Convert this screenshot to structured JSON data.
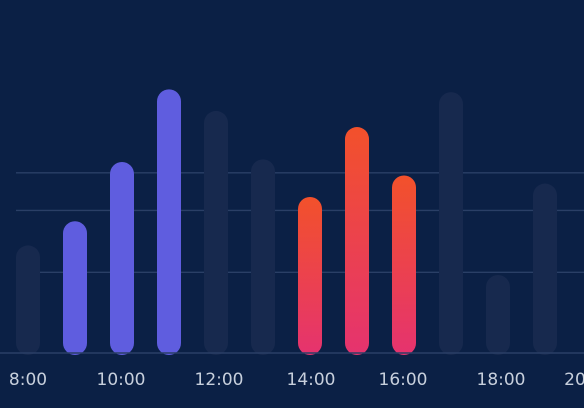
{
  "colors": {
    "background": "#0b2045",
    "inactive_bar": "#17294e",
    "grid": "#2a3f66",
    "axis_text": "#c7cfdc",
    "blue_bar": "#5f5ddf",
    "warm_top": "#f2512b",
    "warm_bottom": "#e5336f"
  },
  "chart_data": {
    "type": "bar",
    "title": "",
    "xlabel": "",
    "ylabel": "",
    "ylim": [
      0,
      100
    ],
    "grid": true,
    "x_tick_labels": [
      "8:00",
      "10:00",
      "12:00",
      "14:00",
      "16:00",
      "18:00",
      "20"
    ],
    "categories": [
      "8:00",
      "9:00",
      "10:00",
      "11:00",
      "12:00",
      "13:00",
      "14:00",
      "15:00",
      "16:00",
      "17:00",
      "18:00",
      "19:00"
    ],
    "series": [
      {
        "style": "inactive",
        "values": [
          40,
          null,
          null,
          null,
          90,
          72,
          null,
          null,
          null,
          97,
          29,
          63
        ]
      },
      {
        "style": "blue",
        "values": [
          null,
          49,
          71,
          98,
          null,
          null,
          null,
          null,
          null,
          null,
          null,
          null
        ]
      },
      {
        "style": "warm-gradient",
        "values": [
          null,
          null,
          null,
          null,
          null,
          null,
          58,
          84,
          66,
          null,
          null,
          null
        ]
      }
    ]
  }
}
